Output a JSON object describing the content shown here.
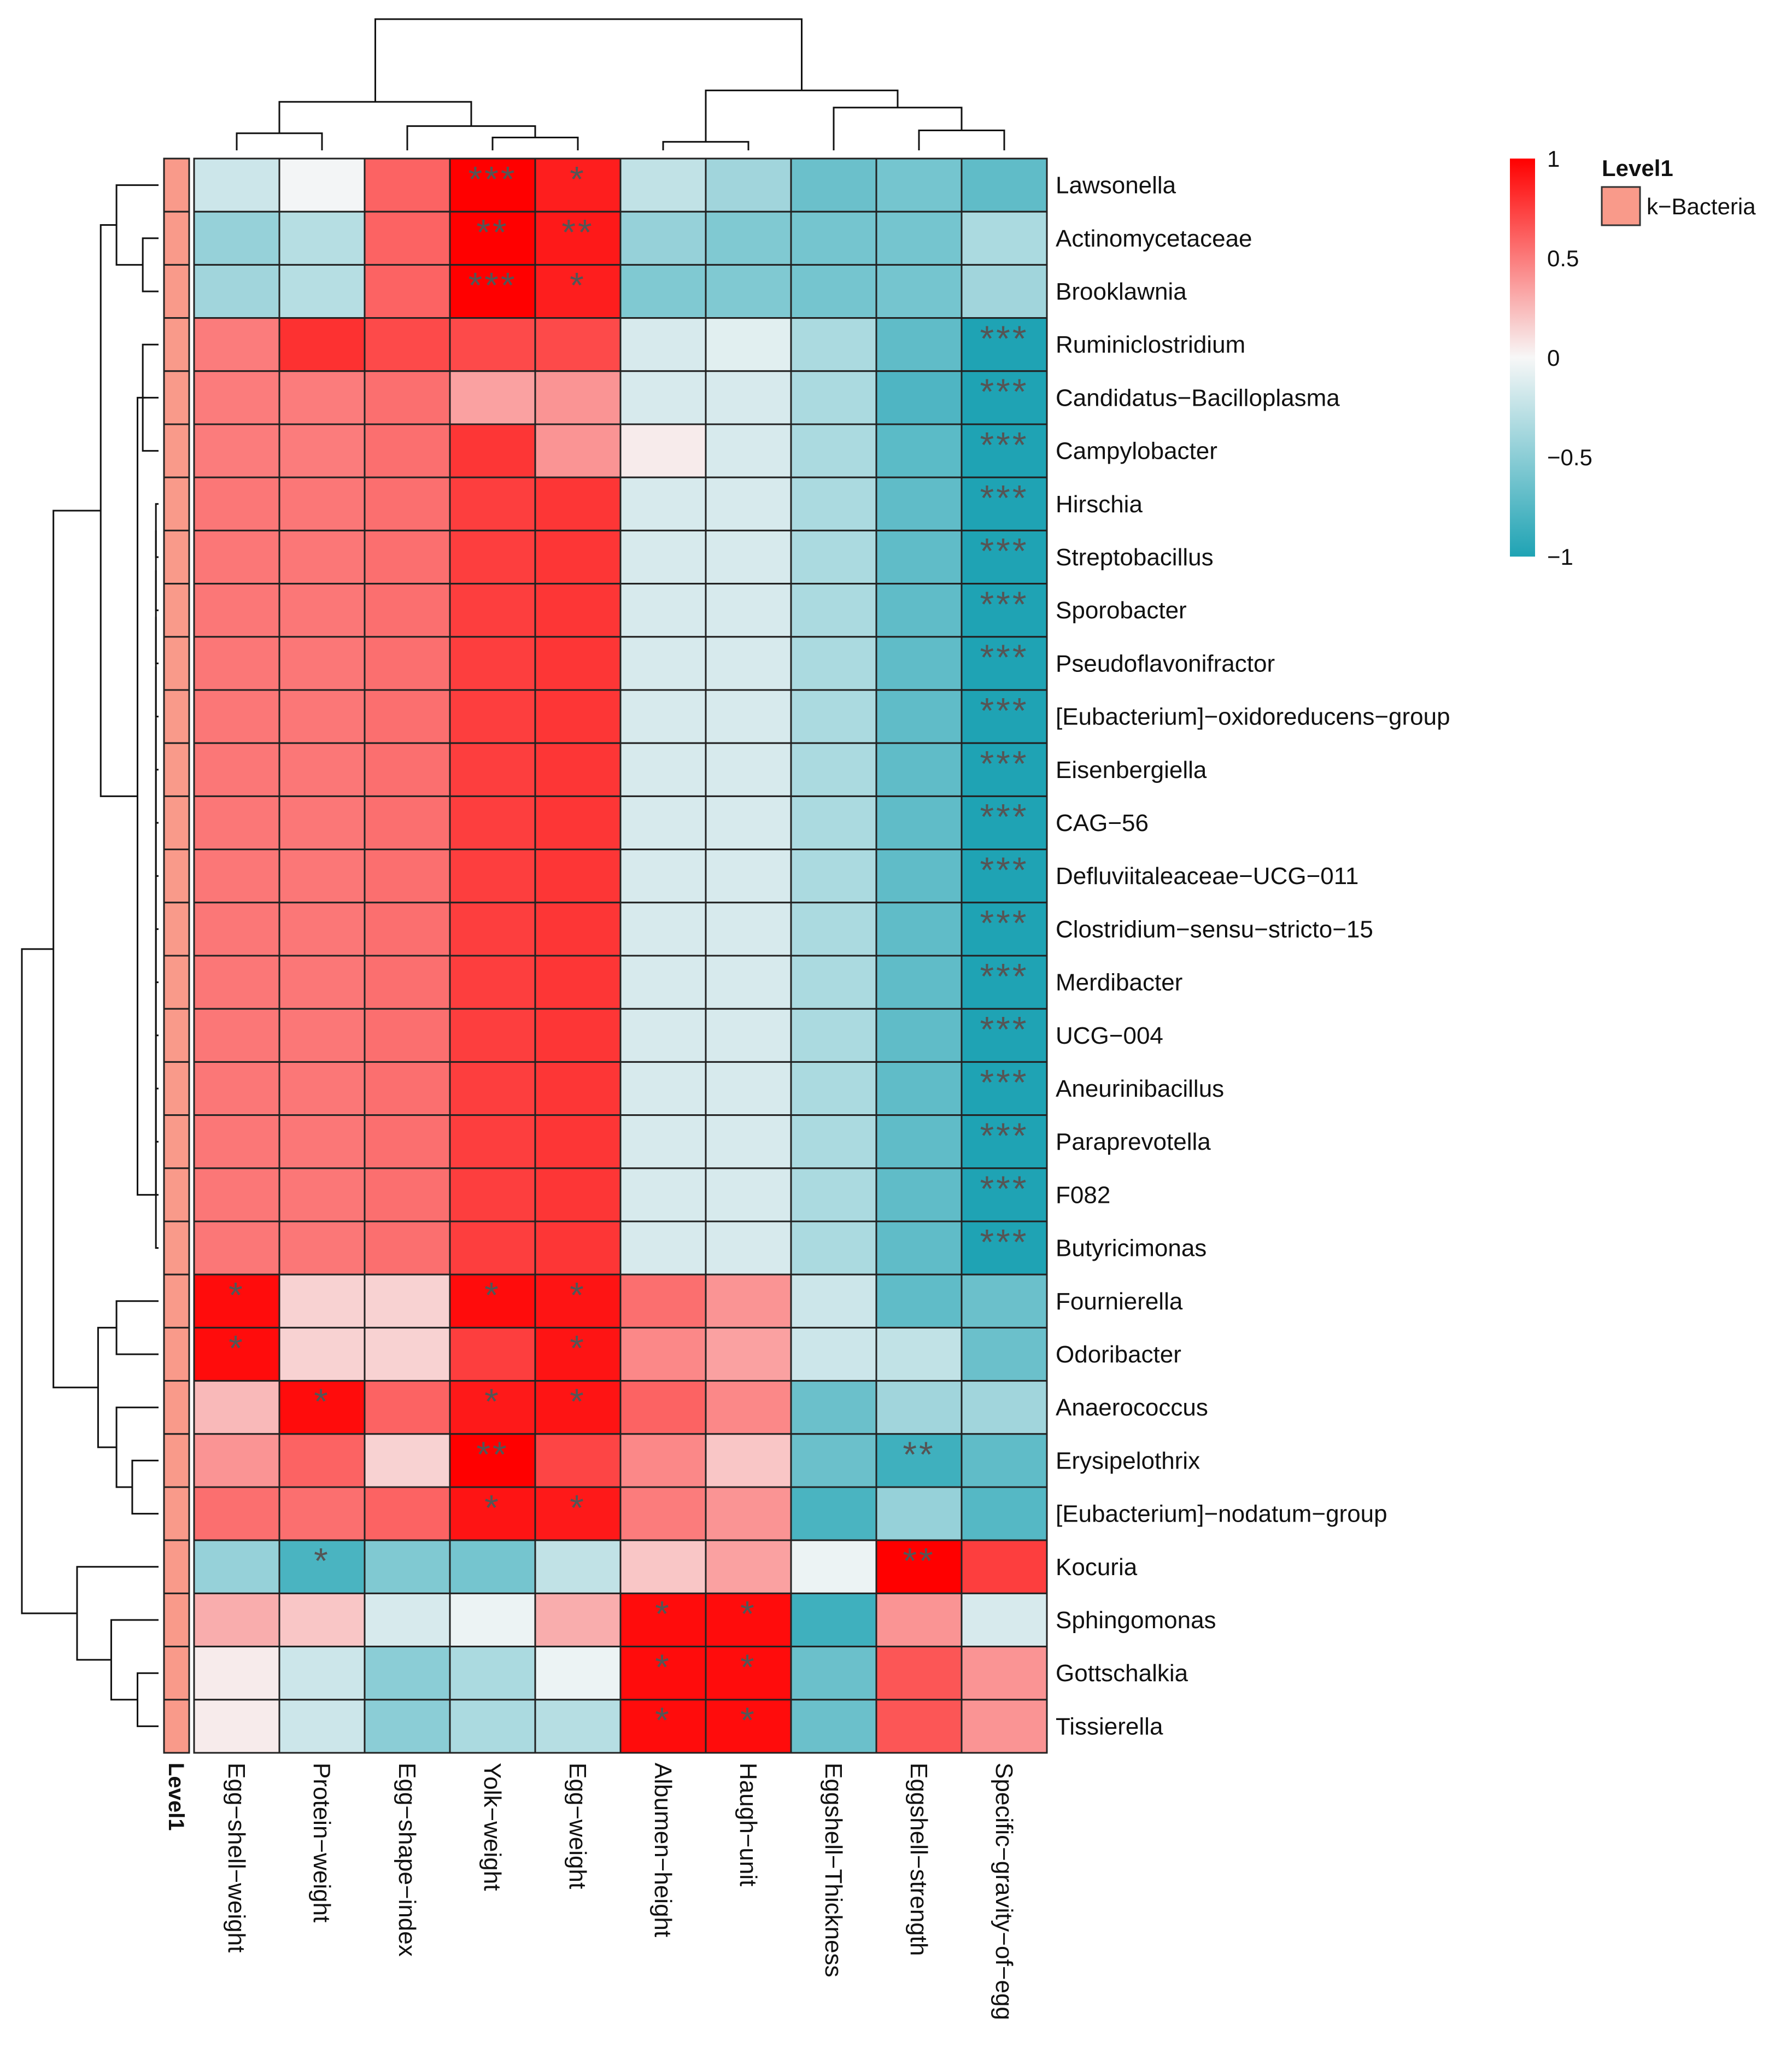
{
  "colors": {
    "high": "#ff0000",
    "mid": "#f7f7f7",
    "low": "#1fa3b4",
    "annotation": "#f99a8a",
    "grid": "#222222",
    "dendrogram": "#111111",
    "star": "#555555"
  },
  "chart_data": {
    "type": "heatmap",
    "title": "",
    "columns": [
      "Egg−shell−weight",
      "Protein−weight",
      "Egg−shape−index",
      "Yolk−weight",
      "Egg−weight",
      "Albumen−height",
      "Haugh−unit",
      "Eggshell−Thickness",
      "Eggshell−strength",
      "Specific−gravity−of−egg"
    ],
    "rows": [
      "Lawsonella",
      "Actinomycetaceae",
      "Brooklawnia",
      "Ruminiclostridium",
      "Candidatus−Bacilloplasma",
      "Campylobacter",
      "Hirschia",
      "Streptobacillus",
      "Sporobacter",
      "Pseudoflavonifractor",
      "[Eubacterium]−oxidoreducens−group",
      "Eisenbergiella",
      "CAG−56",
      "Defluviitaleaceae−UCG−011",
      "Clostridium−sensu−stricto−15",
      "Merdibacter",
      "UCG−004",
      "Aneurinibacillus",
      "Paraprevotella",
      "F082",
      "Butyricimonas",
      "Fournierella",
      "Odoribacter",
      "Anaerococcus",
      "Erysipelothrix",
      "[Eubacterium]−nodatum−group",
      "Kocuria",
      "Sphingomonas",
      "Gottschalkia",
      "Tissierella"
    ],
    "values": [
      [
        -0.2,
        -0.02,
        0.6,
        1.0,
        0.88,
        -0.25,
        -0.4,
        -0.65,
        -0.6,
        -0.7
      ],
      [
        -0.45,
        -0.3,
        0.6,
        1.0,
        0.9,
        -0.45,
        -0.55,
        -0.6,
        -0.6,
        -0.35
      ],
      [
        -0.4,
        -0.3,
        0.6,
        1.0,
        0.88,
        -0.55,
        -0.55,
        -0.6,
        -0.6,
        -0.4
      ],
      [
        0.5,
        0.8,
        0.7,
        0.7,
        0.7,
        -0.15,
        -0.1,
        -0.35,
        -0.7,
        -1.0
      ],
      [
        0.5,
        0.5,
        0.55,
        0.35,
        0.4,
        -0.15,
        -0.15,
        -0.35,
        -0.78,
        -1.0
      ],
      [
        0.5,
        0.5,
        0.55,
        0.78,
        0.4,
        0.05,
        -0.15,
        -0.35,
        -0.72,
        -1.0
      ],
      [
        0.52,
        0.52,
        0.55,
        0.75,
        0.78,
        -0.15,
        -0.15,
        -0.35,
        -0.7,
        -1.0
      ],
      [
        0.52,
        0.52,
        0.55,
        0.75,
        0.78,
        -0.15,
        -0.15,
        -0.35,
        -0.7,
        -1.0
      ],
      [
        0.52,
        0.52,
        0.55,
        0.75,
        0.78,
        -0.15,
        -0.15,
        -0.35,
        -0.7,
        -1.0
      ],
      [
        0.52,
        0.52,
        0.55,
        0.75,
        0.78,
        -0.15,
        -0.15,
        -0.35,
        -0.7,
        -1.0
      ],
      [
        0.52,
        0.52,
        0.55,
        0.75,
        0.78,
        -0.15,
        -0.15,
        -0.35,
        -0.7,
        -1.0
      ],
      [
        0.52,
        0.52,
        0.55,
        0.75,
        0.78,
        -0.15,
        -0.15,
        -0.35,
        -0.7,
        -1.0
      ],
      [
        0.52,
        0.52,
        0.55,
        0.75,
        0.78,
        -0.15,
        -0.15,
        -0.35,
        -0.7,
        -1.0
      ],
      [
        0.52,
        0.52,
        0.55,
        0.75,
        0.78,
        -0.15,
        -0.15,
        -0.35,
        -0.7,
        -1.0
      ],
      [
        0.52,
        0.52,
        0.55,
        0.75,
        0.78,
        -0.15,
        -0.15,
        -0.35,
        -0.7,
        -1.0
      ],
      [
        0.52,
        0.52,
        0.55,
        0.75,
        0.78,
        -0.15,
        -0.15,
        -0.35,
        -0.7,
        -1.0
      ],
      [
        0.52,
        0.52,
        0.55,
        0.75,
        0.78,
        -0.15,
        -0.15,
        -0.35,
        -0.7,
        -1.0
      ],
      [
        0.52,
        0.52,
        0.55,
        0.75,
        0.78,
        -0.15,
        -0.15,
        -0.35,
        -0.7,
        -1.0
      ],
      [
        0.52,
        0.52,
        0.55,
        0.75,
        0.78,
        -0.15,
        -0.15,
        -0.35,
        -0.7,
        -1.0
      ],
      [
        0.52,
        0.52,
        0.55,
        0.75,
        0.78,
        -0.15,
        -0.15,
        -0.35,
        -0.7,
        -1.0
      ],
      [
        0.52,
        0.52,
        0.55,
        0.75,
        0.78,
        -0.15,
        -0.15,
        -0.35,
        -0.7,
        -1.0
      ],
      [
        0.95,
        0.15,
        0.15,
        0.95,
        0.92,
        0.55,
        0.4,
        -0.2,
        -0.7,
        -0.65
      ],
      [
        0.95,
        0.15,
        0.15,
        0.75,
        0.92,
        0.45,
        0.35,
        -0.2,
        -0.25,
        -0.65
      ],
      [
        0.25,
        0.95,
        0.6,
        0.9,
        0.92,
        0.6,
        0.45,
        -0.65,
        -0.4,
        -0.4
      ],
      [
        0.4,
        0.6,
        0.15,
        1.0,
        0.72,
        0.45,
        0.2,
        -0.65,
        -0.85,
        -0.7
      ],
      [
        0.55,
        0.55,
        0.6,
        0.92,
        0.9,
        0.5,
        0.4,
        -0.8,
        -0.45,
        -0.75
      ],
      [
        -0.45,
        -0.8,
        -0.55,
        -0.6,
        -0.25,
        0.2,
        0.35,
        -0.05,
        1.0,
        0.75
      ],
      [
        0.3,
        0.2,
        -0.15,
        -0.05,
        0.3,
        0.95,
        0.95,
        -0.85,
        0.4,
        -0.15
      ],
      [
        0.05,
        -0.2,
        -0.5,
        -0.35,
        -0.05,
        0.95,
        0.95,
        -0.65,
        0.65,
        0.4
      ],
      [
        0.05,
        -0.2,
        -0.5,
        -0.35,
        -0.3,
        0.95,
        0.95,
        -0.65,
        0.65,
        0.4
      ]
    ],
    "stars": [
      [
        "",
        "",
        "",
        "***",
        "*",
        "",
        "",
        "",
        "",
        ""
      ],
      [
        "",
        "",
        "",
        "**",
        "**",
        "",
        "",
        "",
        "",
        ""
      ],
      [
        "",
        "",
        "",
        "***",
        "*",
        "",
        "",
        "",
        "",
        ""
      ],
      [
        "",
        "",
        "",
        "",
        "",
        "",
        "",
        "",
        "",
        "***"
      ],
      [
        "",
        "",
        "",
        "",
        "",
        "",
        "",
        "",
        "",
        "***"
      ],
      [
        "",
        "",
        "",
        "",
        "",
        "",
        "",
        "",
        "",
        "***"
      ],
      [
        "",
        "",
        "",
        "",
        "",
        "",
        "",
        "",
        "",
        "***"
      ],
      [
        "",
        "",
        "",
        "",
        "",
        "",
        "",
        "",
        "",
        "***"
      ],
      [
        "",
        "",
        "",
        "",
        "",
        "",
        "",
        "",
        "",
        "***"
      ],
      [
        "",
        "",
        "",
        "",
        "",
        "",
        "",
        "",
        "",
        "***"
      ],
      [
        "",
        "",
        "",
        "",
        "",
        "",
        "",
        "",
        "",
        "***"
      ],
      [
        "",
        "",
        "",
        "",
        "",
        "",
        "",
        "",
        "",
        "***"
      ],
      [
        "",
        "",
        "",
        "",
        "",
        "",
        "",
        "",
        "",
        "***"
      ],
      [
        "",
        "",
        "",
        "",
        "",
        "",
        "",
        "",
        "",
        "***"
      ],
      [
        "",
        "",
        "",
        "",
        "",
        "",
        "",
        "",
        "",
        "***"
      ],
      [
        "",
        "",
        "",
        "",
        "",
        "",
        "",
        "",
        "",
        "***"
      ],
      [
        "",
        "",
        "",
        "",
        "",
        "",
        "",
        "",
        "",
        "***"
      ],
      [
        "",
        "",
        "",
        "",
        "",
        "",
        "",
        "",
        "",
        "***"
      ],
      [
        "",
        "",
        "",
        "",
        "",
        "",
        "",
        "",
        "",
        "***"
      ],
      [
        "",
        "",
        "",
        "",
        "",
        "",
        "",
        "",
        "",
        "***"
      ],
      [
        "",
        "",
        "",
        "",
        "",
        "",
        "",
        "",
        "",
        "***"
      ],
      [
        "*",
        "",
        "",
        "*",
        "*",
        "",
        "",
        "",
        "",
        ""
      ],
      [
        "*",
        "",
        "",
        "",
        "*",
        "",
        "",
        "",
        "",
        ""
      ],
      [
        "",
        "*",
        "",
        "*",
        "*",
        "",
        "",
        "",
        "",
        ""
      ],
      [
        "",
        "",
        "",
        "**",
        "",
        "",
        "",
        "",
        "**",
        ""
      ],
      [
        "",
        "",
        "",
        "*",
        "*",
        "",
        "",
        "",
        "",
        ""
      ],
      [
        "",
        "*",
        "",
        "",
        "",
        "",
        "",
        "",
        "**",
        ""
      ],
      [
        "",
        "",
        "",
        "",
        "",
        "*",
        "*",
        "",
        "",
        ""
      ],
      [
        "",
        "",
        "",
        "",
        "",
        "*",
        "*",
        "",
        "",
        ""
      ],
      [
        "",
        "",
        "",
        "",
        "",
        "*",
        "*",
        "",
        "",
        ""
      ]
    ],
    "color_scale": {
      "min": -1,
      "max": 1,
      "ticks": [
        "1",
        "0.5",
        "0",
        "−0.5",
        "−1"
      ]
    },
    "annotation": {
      "title": "Level1",
      "legend_label": "k−Bacteria",
      "axis_label": "Level1"
    },
    "column_dendrogram": {
      "merges": [
        [
          0,
          1,
          0.6
        ],
        [
          3,
          4,
          0.45
        ],
        [
          2,
          11,
          0.85
        ],
        [
          10,
          12,
          1.7
        ],
        [
          5,
          6,
          0.3
        ],
        [
          8,
          9,
          0.7
        ],
        [
          7,
          15,
          1.5
        ],
        [
          14,
          16,
          2.1
        ],
        [
          13,
          17,
          4.6
        ]
      ]
    },
    "row_dendrogram": {
      "merges": [
        [
          1,
          2,
          0.6
        ],
        [
          0,
          30,
          1.6
        ],
        [
          3,
          5,
          0.6
        ],
        [
          4,
          32,
          0.5
        ],
        [
          6,
          7,
          0.1
        ],
        [
          8,
          34,
          0.1
        ],
        [
          9,
          35,
          0.1
        ],
        [
          10,
          36,
          0.1
        ],
        [
          11,
          37,
          0.1
        ],
        [
          12,
          38,
          0.1
        ],
        [
          13,
          39,
          0.1
        ],
        [
          14,
          40,
          0.1
        ],
        [
          15,
          41,
          0.1
        ],
        [
          16,
          42,
          0.1
        ],
        [
          17,
          43,
          0.1
        ],
        [
          18,
          44,
          0.1
        ],
        [
          19,
          45,
          0.1
        ],
        [
          20,
          46,
          0.1
        ],
        [
          33,
          47,
          0.8
        ],
        [
          31,
          48,
          2.2
        ],
        [
          21,
          22,
          1.6
        ],
        [
          24,
          25,
          1.0
        ],
        [
          23,
          51,
          1.6
        ],
        [
          50,
          52,
          2.3
        ],
        [
          49,
          53,
          4.0
        ],
        [
          28,
          29,
          0.8
        ],
        [
          27,
          55,
          1.8
        ],
        [
          26,
          56,
          3.1
        ],
        [
          54,
          57,
          5.2
        ]
      ]
    }
  }
}
